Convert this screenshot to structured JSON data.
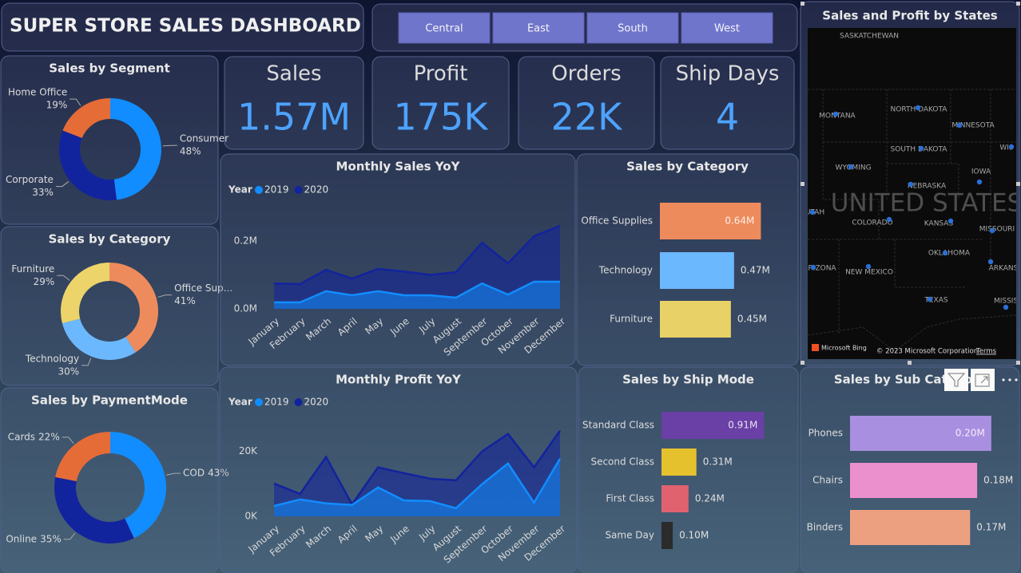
{
  "title": "SUPER STORE SALES DASHBOARD",
  "slicer": [
    "Central",
    "East",
    "South",
    "West"
  ],
  "kpis": [
    {
      "label": "Sales",
      "value": "1.57M"
    },
    {
      "label": "Profit",
      "value": "175K"
    },
    {
      "label": "Orders",
      "value": "22K"
    },
    {
      "label": "Ship Days",
      "value": 4
    }
  ],
  "map": {
    "title": "Sales and Profit by States",
    "country": "UNITED STATES",
    "labels": [
      "SASKATCHEWAN",
      "MONTANA",
      "NORTH DAKOTA",
      "MINNESOTA",
      "WIS",
      "SOUTH DAKOTA",
      "WYOMING",
      "IOWA",
      "NEBRASKA",
      "UTAH",
      "COLORADO",
      "KANSAS",
      "MISSOURI",
      "OKLAHOMA",
      "ARIZONA",
      "NEW MEXICO",
      "ARKANSAS",
      "TEXAS",
      "MISSISSIPPI"
    ],
    "attribution": [
      "Microsoft Bing",
      "© 2023 Microsoft Corporation",
      "Terms"
    ]
  },
  "chart_data": [
    {
      "type": "donut",
      "title": "Sales by Segment",
      "categories": [
        "Consumer",
        "Corporate",
        "Home Office"
      ],
      "values": [
        48,
        33,
        19
      ],
      "value_labels": [
        "48%",
        "33%",
        "19%"
      ],
      "colors": [
        "#118dff",
        "#12239e",
        "#e66c37"
      ]
    },
    {
      "type": "donut",
      "title": "Sales by Category",
      "categories": [
        "Office Sup...",
        "Technology",
        "Furniture"
      ],
      "values": [
        41,
        30,
        29
      ],
      "value_labels": [
        "41%",
        "30%",
        "29%"
      ],
      "colors": [
        "#ee8b5c",
        "#6cb8ff",
        "#ecd46a"
      ]
    },
    {
      "type": "donut",
      "title": "Sales by PaymentMode",
      "categories": [
        "COD",
        "Online",
        "Cards"
      ],
      "values": [
        43,
        35,
        22
      ],
      "value_labels": [
        "43%",
        "35%",
        "22%"
      ],
      "colors": [
        "#118dff",
        "#12239e",
        "#e66c37"
      ]
    },
    {
      "type": "area",
      "title": "Monthly Sales YoY",
      "legend_title": "Year",
      "categories": [
        "January",
        "February",
        "March",
        "April",
        "May",
        "June",
        "July",
        "August",
        "September",
        "October",
        "November",
        "December"
      ],
      "series": [
        {
          "name": "2019",
          "color": "#118dff",
          "values": [
            0.019,
            0.019,
            0.052,
            0.04,
            0.052,
            0.04,
            0.04,
            0.033,
            0.075,
            0.042,
            0.08,
            0.08
          ]
        },
        {
          "name": "2020",
          "color": "#12239e",
          "values": [
            0.075,
            0.073,
            0.115,
            0.089,
            0.118,
            0.11,
            0.1,
            0.108,
            0.195,
            0.134,
            0.214,
            0.245
          ]
        }
      ],
      "ylim": [
        0,
        0.3
      ],
      "yticks": [
        {
          "value": 0,
          "label": "0.0M"
        },
        {
          "value": 0.2,
          "label": "0.2M"
        }
      ]
    },
    {
      "type": "hbar",
      "title": "Sales by Category",
      "categories": [
        "Office Supplies",
        "Technology",
        "Furniture"
      ],
      "values": [
        0.64,
        0.47,
        0.45
      ],
      "value_labels": [
        "0.64M",
        "0.47M",
        "0.45M"
      ],
      "colors": [
        "#ee8b5c",
        "#6cb8ff",
        "#e8d166"
      ],
      "xlim": [
        0,
        0.8
      ]
    },
    {
      "type": "area",
      "title": "Monthly Profit YoY",
      "legend_title": "Year",
      "categories": [
        "January",
        "February",
        "March",
        "April",
        "May",
        "June",
        "July",
        "August",
        "September",
        "October",
        "November",
        "December"
      ],
      "series": [
        {
          "name": "2019",
          "color": "#118dff",
          "values": [
            3200,
            5200,
            4000,
            3500,
            8900,
            4900,
            4700,
            2500,
            9900,
            16300,
            4200,
            17800
          ]
        },
        {
          "name": "2020",
          "color": "#12239e",
          "values": [
            10100,
            6900,
            18300,
            3700,
            15100,
            13300,
            11600,
            11100,
            20000,
            25400,
            15100,
            26400
          ]
        }
      ],
      "ylim": [
        0,
        30000
      ],
      "yticks": [
        {
          "value": 0,
          "label": "0K"
        },
        {
          "value": 20000,
          "label": "20K"
        }
      ]
    },
    {
      "type": "hbar",
      "title": "Sales by Ship Mode",
      "categories": [
        "Standard Class",
        "Second Class",
        "First Class",
        "Same Day"
      ],
      "values": [
        0.91,
        0.31,
        0.24,
        0.1
      ],
      "value_labels": [
        "0.91M",
        "0.31M",
        "0.24M",
        "0.10M"
      ],
      "colors": [
        "#6a3fa6",
        "#e5c12e",
        "#e0626f",
        "#2b2b2b"
      ],
      "xlim": [
        0,
        1
      ]
    },
    {
      "type": "hbar",
      "title": "Sales by Sub Category",
      "categories": [
        "Phones",
        "Chairs",
        "Binders"
      ],
      "values": [
        0.2,
        0.18,
        0.17
      ],
      "value_labels": [
        "0.20M",
        "0.18M",
        "0.17M"
      ],
      "colors": [
        "#a98fe0",
        "#ec8fcd",
        "#eda080"
      ],
      "xlim": [
        0,
        0.25
      ]
    }
  ]
}
